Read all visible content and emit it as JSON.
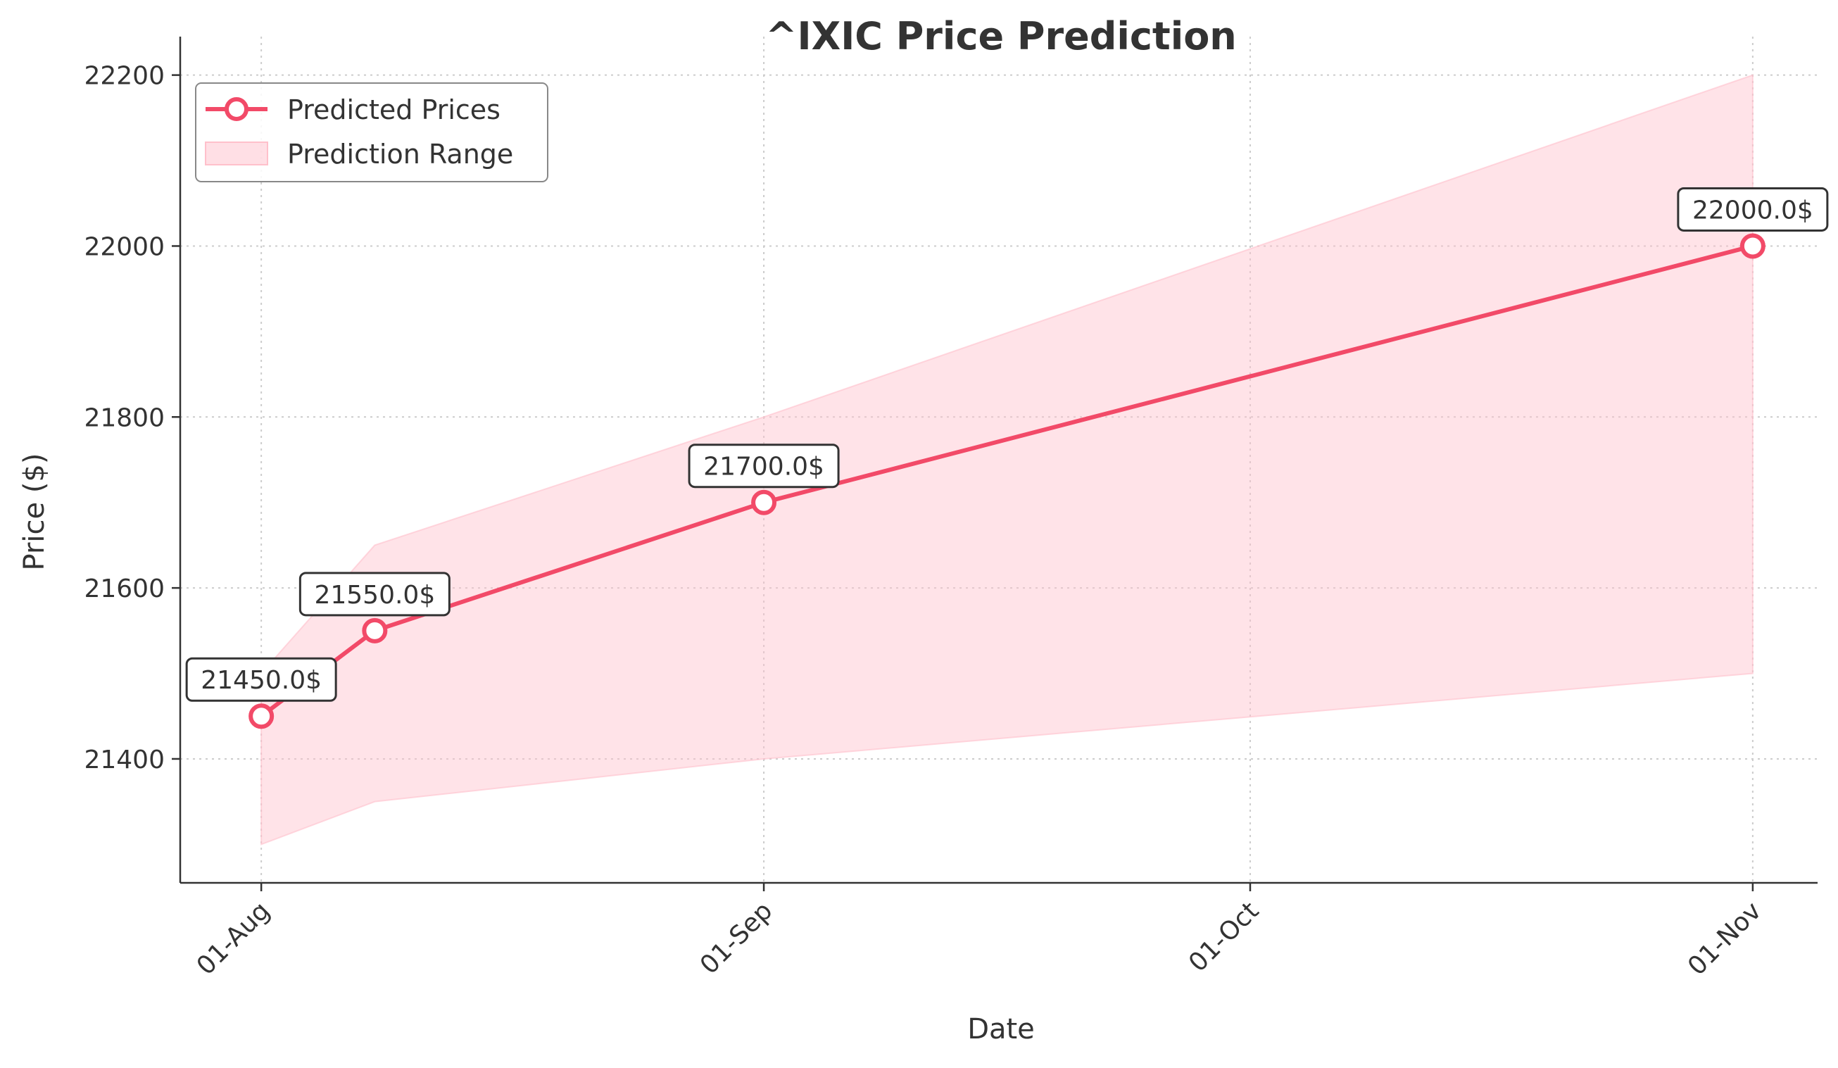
{
  "chart_data": {
    "type": "line",
    "title": "^IXIC Price Prediction",
    "xlabel": "Date",
    "ylabel": "Price ($)",
    "x_tick_labels": [
      {
        "label": "01-Aug",
        "date": "2025-08-01"
      },
      {
        "label": "01-Sep",
        "date": "2025-09-01"
      },
      {
        "label": "01-Oct",
        "date": "2025-10-01"
      },
      {
        "label": "01-Nov",
        "date": "2025-11-01"
      }
    ],
    "y_ticks": [
      21400,
      21600,
      21800,
      22000,
      22200
    ],
    "xlim": [
      "2025-07-27",
      "2025-11-05"
    ],
    "ylim": [
      21255,
      22245
    ],
    "grid": true,
    "legend_position": "top-left",
    "legend": {
      "predicted": "Predicted Prices",
      "range": "Prediction Range"
    },
    "series": [
      {
        "name": "Predicted Prices",
        "color": "#f24a68",
        "points": [
          {
            "x": "2025-08-01",
            "y": 21450.0,
            "label": "21450.0$"
          },
          {
            "x": "2025-08-08",
            "y": 21550.0,
            "label": "21550.0$"
          },
          {
            "x": "2025-09-01",
            "y": 21700.0,
            "label": "21700.0$"
          },
          {
            "x": "2025-11-01",
            "y": 22000.0,
            "label": "22000.0$"
          }
        ]
      }
    ],
    "range": {
      "name": "Prediction Range",
      "color": "#ffc0cb",
      "points": [
        {
          "x": "2025-08-01",
          "low": 21300,
          "high": 21500
        },
        {
          "x": "2025-08-08",
          "low": 21350,
          "high": 21650
        },
        {
          "x": "2025-09-01",
          "low": 21400,
          "high": 21800
        },
        {
          "x": "2025-11-01",
          "low": 21500,
          "high": 22200
        }
      ]
    }
  }
}
